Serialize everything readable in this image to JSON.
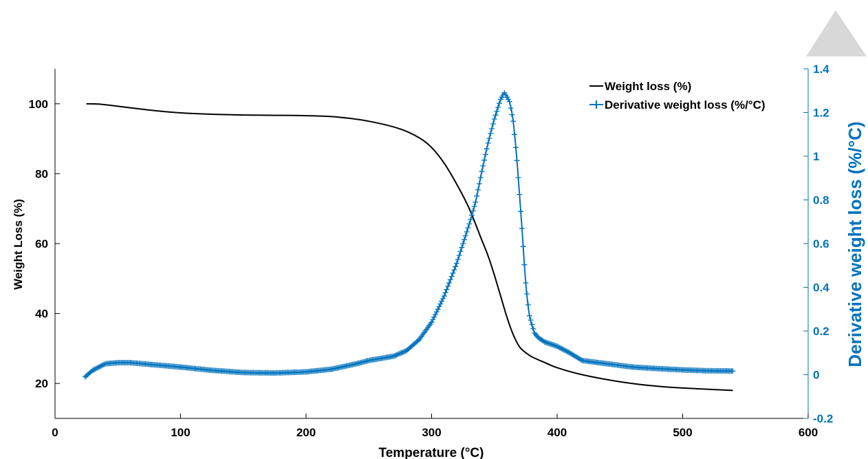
{
  "chart_data": {
    "type": "line",
    "xlabel": "Temperature (°C)",
    "ylabel": "Weight Loss (%)",
    "y2label": "Derivative weight loss (%/°C)",
    "xlim": [
      0,
      600
    ],
    "ylim": [
      10,
      110
    ],
    "y2lim": [
      -0.2,
      1.4
    ],
    "xticks": [
      0,
      100,
      200,
      300,
      400,
      500,
      600
    ],
    "yticks": [
      20,
      40,
      60,
      80,
      100
    ],
    "y2ticks": [
      "-0.2",
      "0",
      "0.2",
      "0.4",
      "0.6",
      "0.8",
      "1",
      "1.2",
      "1.4"
    ],
    "grid": false,
    "legend_position": "top-right",
    "colors": {
      "weight": "#000000",
      "derivative": "#0072bd"
    },
    "series": [
      {
        "name": "Weight loss (%)",
        "axis": "left",
        "marker": "none",
        "x": [
          25,
          35,
          50,
          75,
          100,
          125,
          150,
          175,
          200,
          225,
          250,
          275,
          290,
          300,
          310,
          320,
          330,
          340,
          345,
          350,
          355,
          360,
          365,
          370,
          375,
          380,
          390,
          400,
          420,
          450,
          480,
          510,
          540
        ],
        "y": [
          100,
          99.9,
          99.3,
          98.2,
          97.4,
          97.0,
          96.8,
          96.7,
          96.6,
          96.2,
          95.0,
          92.8,
          90.3,
          87.5,
          83.0,
          77.0,
          70.0,
          61.0,
          56.5,
          51.0,
          45.0,
          39.0,
          34.0,
          30.5,
          28.8,
          27.6,
          26.0,
          24.5,
          22.5,
          20.5,
          19.2,
          18.5,
          18.0
        ]
      },
      {
        "name": "Derivative weight loss (%/°C)",
        "axis": "right",
        "marker": "plus",
        "x": [
          24,
          30,
          40,
          50,
          60,
          70,
          80,
          100,
          125,
          150,
          175,
          200,
          220,
          240,
          250,
          260,
          270,
          280,
          290,
          300,
          310,
          320,
          330,
          335,
          340,
          345,
          350,
          355,
          358,
          362,
          365,
          368,
          372,
          375,
          378,
          382,
          385,
          390,
          400,
          410,
          420,
          440,
          460,
          480,
          500,
          520,
          540
        ],
        "y": [
          -0.01,
          0.02,
          0.05,
          0.055,
          0.055,
          0.05,
          0.045,
          0.035,
          0.02,
          0.01,
          0.008,
          0.013,
          0.025,
          0.05,
          0.065,
          0.075,
          0.085,
          0.11,
          0.16,
          0.24,
          0.36,
          0.51,
          0.69,
          0.79,
          0.93,
          1.06,
          1.17,
          1.26,
          1.29,
          1.25,
          1.16,
          0.98,
          0.67,
          0.42,
          0.27,
          0.19,
          0.17,
          0.15,
          0.13,
          0.1,
          0.065,
          0.05,
          0.035,
          0.028,
          0.022,
          0.018,
          0.017
        ]
      }
    ]
  }
}
